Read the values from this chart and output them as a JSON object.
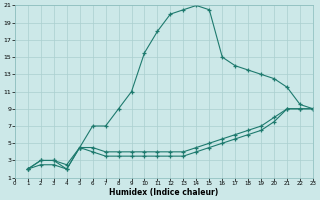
{
  "xlabel": "Humidex (Indice chaleur)",
  "background_color": "#cce8e8",
  "grid_color": "#aacfcf",
  "line_color": "#1e7a6e",
  "xlim": [
    0,
    23
  ],
  "ylim": [
    1,
    21
  ],
  "xticks": [
    0,
    1,
    2,
    3,
    4,
    5,
    6,
    7,
    8,
    9,
    10,
    11,
    12,
    13,
    14,
    15,
    16,
    17,
    18,
    19,
    20,
    21,
    22,
    23
  ],
  "yticks": [
    1,
    3,
    5,
    7,
    9,
    11,
    13,
    15,
    17,
    19,
    21
  ],
  "line1_x": [
    1,
    2,
    3,
    4,
    5,
    6,
    7,
    8,
    9,
    10,
    11,
    12,
    13,
    14,
    15,
    16,
    17,
    18,
    19,
    20,
    21,
    22,
    23
  ],
  "line1_y": [
    2,
    3,
    3,
    2,
    4.5,
    7,
    7,
    9,
    11,
    15.5,
    18,
    20,
    20.5,
    21,
    20.5,
    15,
    14,
    13.5,
    13,
    12.5,
    11.5,
    9.5,
    9
  ],
  "line2_x": [
    1,
    2,
    3,
    4,
    5,
    6,
    7,
    8,
    9,
    10,
    11,
    12,
    13,
    14,
    15,
    16,
    17,
    18,
    19,
    20,
    21,
    22,
    23
  ],
  "line2_y": [
    2,
    3,
    3,
    2.5,
    4.5,
    4.5,
    4,
    4,
    4,
    4,
    4,
    4,
    4,
    4.5,
    5,
    5.5,
    6,
    6.5,
    7,
    8,
    9,
    9,
    9
  ],
  "line3_x": [
    1,
    2,
    3,
    4,
    5,
    6,
    7,
    8,
    9,
    10,
    11,
    12,
    13,
    14,
    15,
    16,
    17,
    18,
    19,
    20,
    21,
    22,
    23
  ],
  "line3_y": [
    2,
    2.5,
    2.5,
    2,
    4.5,
    4,
    3.5,
    3.5,
    3.5,
    3.5,
    3.5,
    3.5,
    3.5,
    4,
    4.5,
    5,
    5.5,
    6,
    6.5,
    7.5,
    9,
    9,
    9
  ]
}
